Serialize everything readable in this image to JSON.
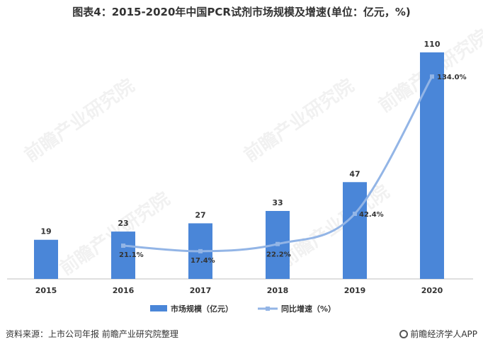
{
  "title": "图表4：2015-2020年中国PCR试剂市场规模及增速(单位：亿元，%)",
  "watermark": "前瞻产业研究院",
  "source": "资料来源：上市公司年报 前瞻产业研究院整理",
  "brand": "前瞻经济学人APP",
  "colors": {
    "bar": "#4a86d8",
    "line": "#93b5e6",
    "axis": "#bfbfbf",
    "text": "#333333"
  },
  "chart_data": {
    "type": "bar",
    "categories": [
      "2015",
      "2016",
      "2017",
      "2018",
      "2019",
      "2020"
    ],
    "series": [
      {
        "name": "市场规模（亿元）",
        "type": "bar",
        "values": [
          19,
          23,
          27,
          33,
          47,
          110
        ],
        "labels": [
          "19",
          "23",
          "27",
          "33",
          "47",
          "110"
        ]
      },
      {
        "name": "同比增速（%）",
        "type": "line",
        "values": [
          null,
          21.1,
          17.4,
          22.2,
          42.4,
          134.0
        ],
        "labels": [
          "",
          "21.1%",
          "17.4%",
          "22.2%",
          "42.4%",
          "134.0%"
        ]
      }
    ],
    "ylim": [
      0,
      120
    ],
    "grid": false,
    "legend": "bottom"
  }
}
